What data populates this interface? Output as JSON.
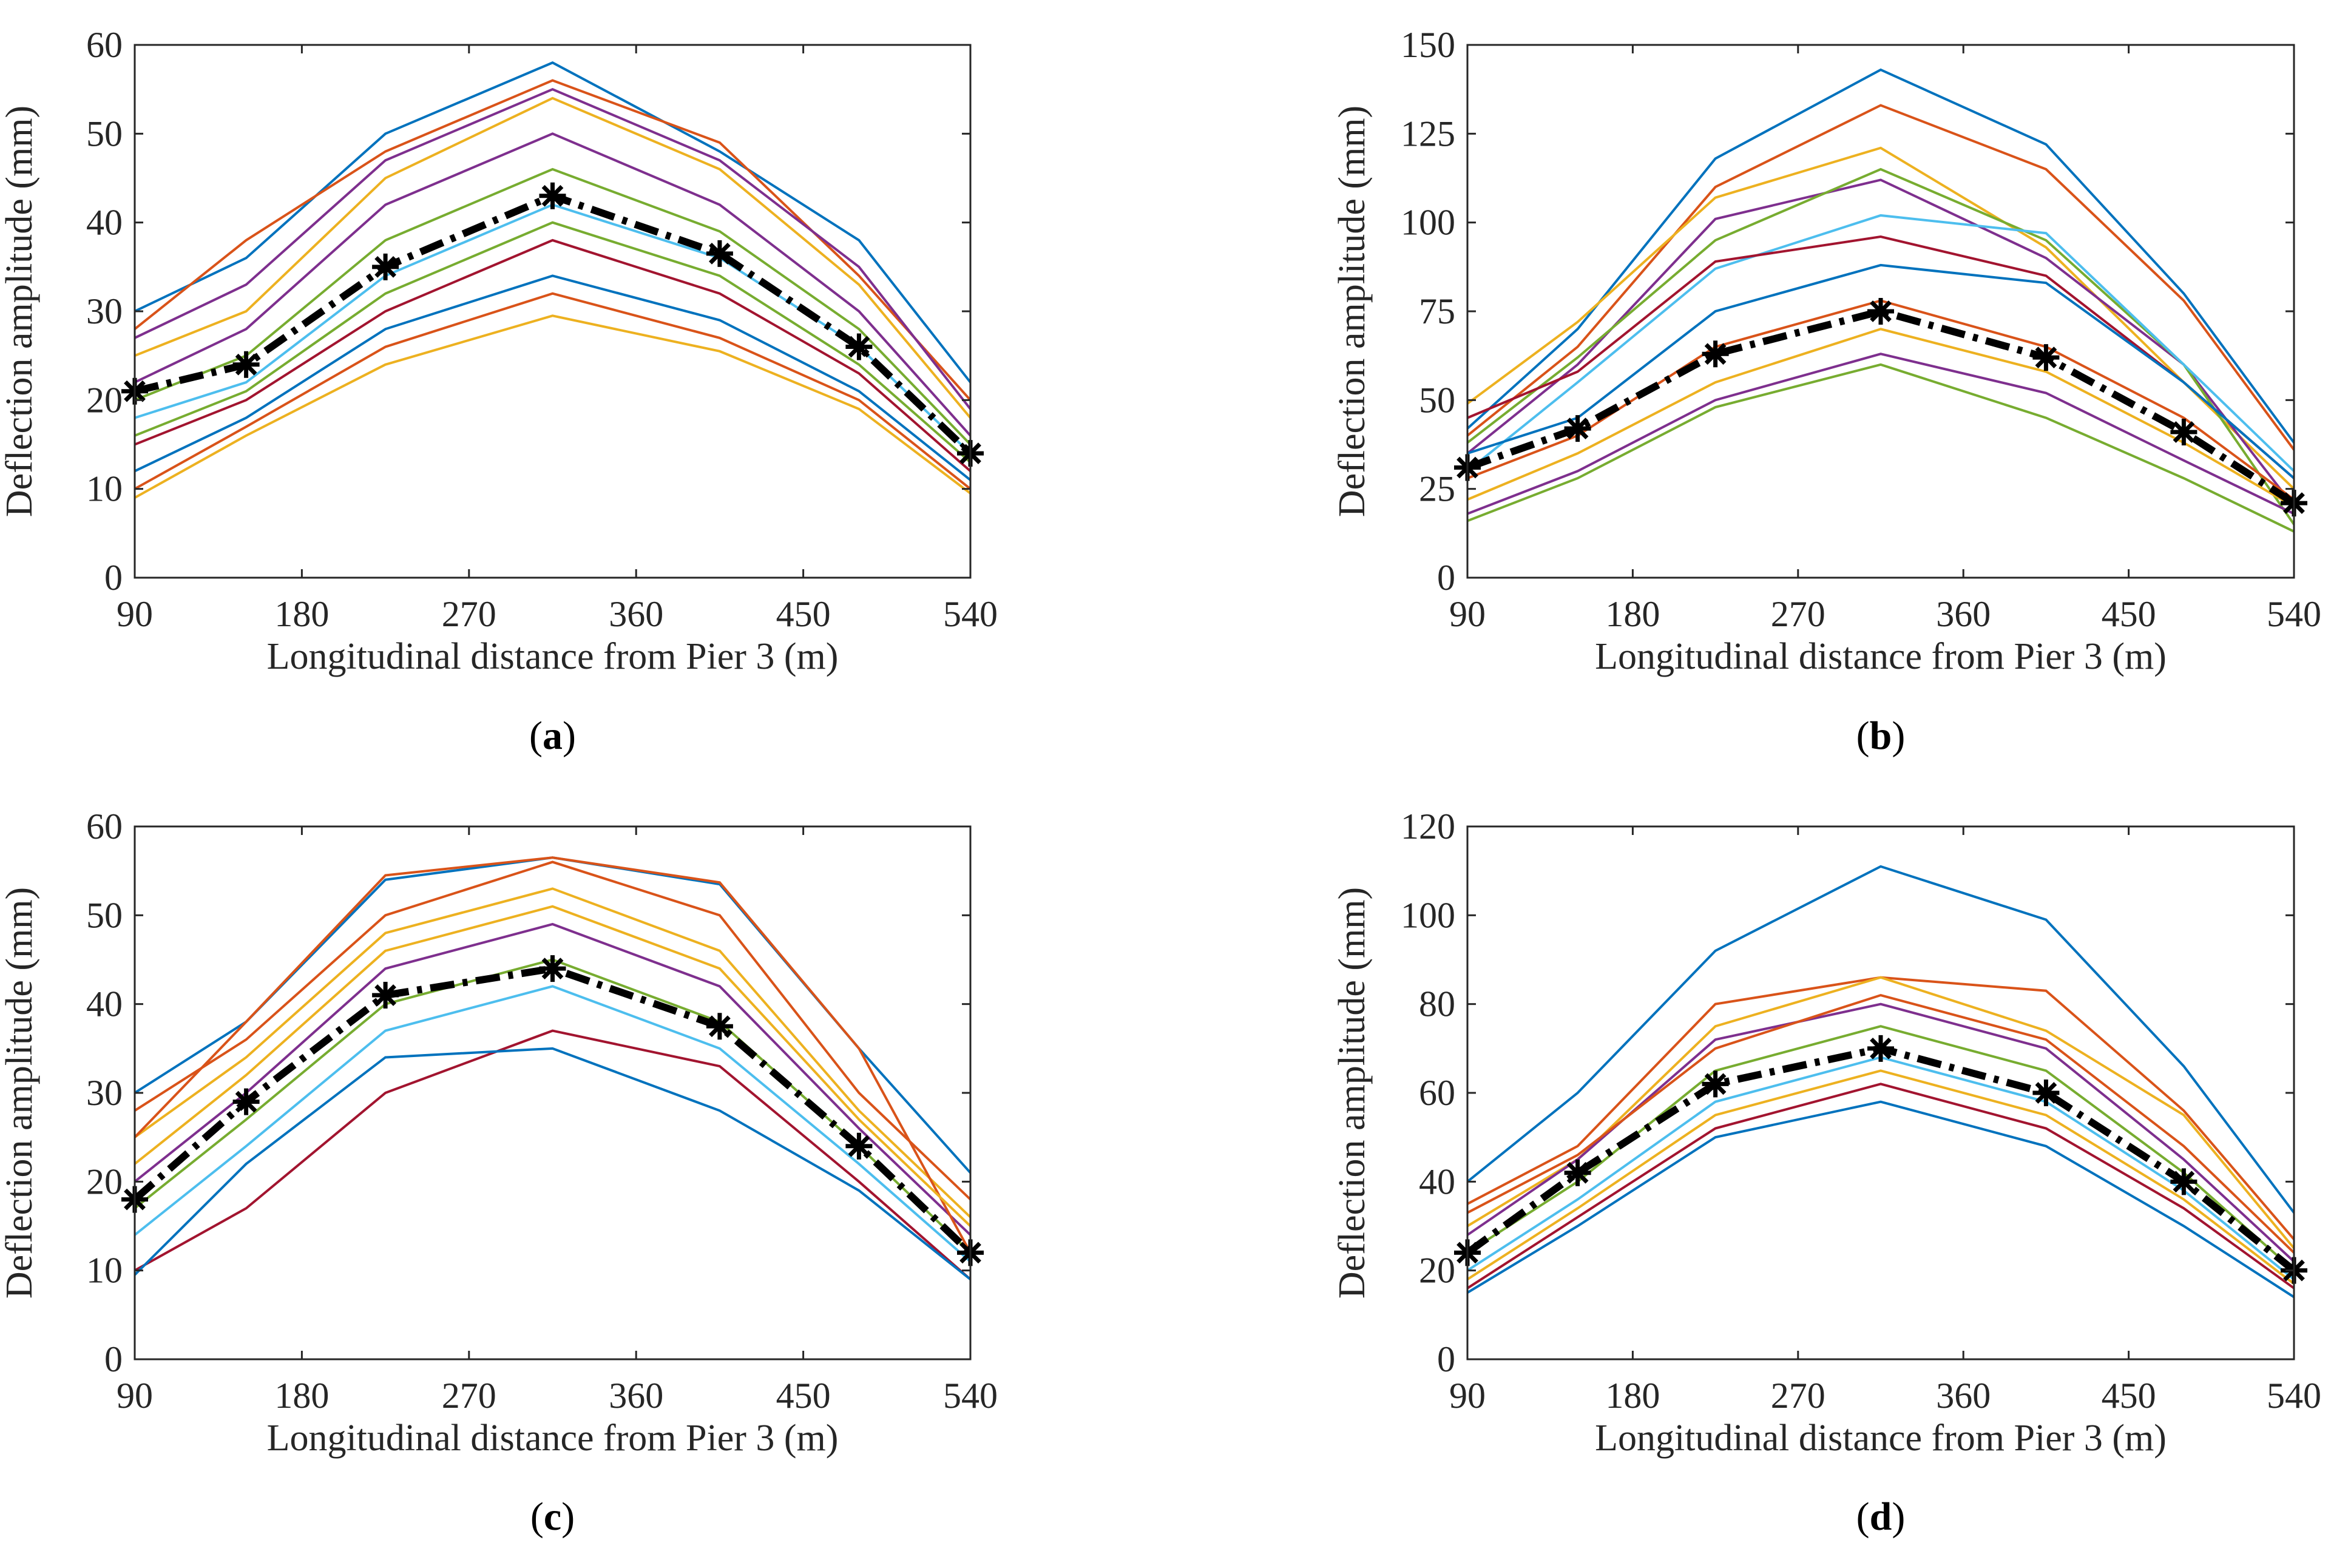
{
  "palette": [
    "#0072BD",
    "#D95319",
    "#EDB120",
    "#7E2F8E",
    "#77AC30",
    "#4DBEEE",
    "#A2142F"
  ],
  "mean_color": "#000000",
  "chart_data": [
    {
      "id": "a",
      "type": "line",
      "caption_paren_open": "(",
      "caption_letter": "a",
      "caption_paren_close": ")",
      "xlabel": "Longitudinal distance from Pier 3 (m)",
      "ylabel": "Deflection amplitude (mm)",
      "xlim": [
        90,
        540
      ],
      "ylim": [
        0,
        60
      ],
      "xticks": [
        90,
        180,
        270,
        360,
        450,
        540
      ],
      "yticks": [
        0,
        10,
        20,
        30,
        40,
        50,
        60
      ],
      "x": [
        90,
        150,
        225,
        315,
        405,
        480,
        540
      ],
      "series": [
        [
          30,
          36,
          50,
          58,
          48,
          38,
          22
        ],
        [
          28,
          38,
          48,
          56,
          49,
          34,
          20
        ],
        [
          25,
          30,
          45,
          54,
          46,
          33,
          18
        ],
        [
          22,
          28,
          42,
          50,
          42,
          30,
          16
        ],
        [
          20,
          25,
          38,
          46,
          39,
          28,
          15
        ],
        [
          18,
          22,
          34,
          42,
          36,
          26,
          14
        ],
        [
          15,
          20,
          30,
          38,
          32,
          23,
          12
        ],
        [
          12,
          18,
          28,
          34,
          29,
          21,
          11
        ],
        [
          10,
          17,
          26,
          32,
          27,
          20,
          10
        ],
        [
          9,
          16,
          24,
          29.5,
          25.5,
          19,
          9.5
        ],
        [
          27,
          33,
          47,
          55,
          47,
          35,
          19
        ],
        [
          16,
          21,
          32,
          40,
          34,
          24,
          13
        ]
      ],
      "mean": [
        21,
        24,
        35,
        43,
        36.5,
        26,
        14
      ]
    },
    {
      "id": "b",
      "type": "line",
      "caption_paren_open": "(",
      "caption_letter": "b",
      "caption_paren_close": ")",
      "xlabel": "Longitudinal distance from Pier 3 (m)",
      "ylabel": "Deflection amplitude (mm)",
      "xlim": [
        90,
        540
      ],
      "ylim": [
        0,
        150
      ],
      "xticks": [
        90,
        180,
        270,
        360,
        450,
        540
      ],
      "yticks": [
        0,
        25,
        50,
        75,
        100,
        125,
        150
      ],
      "x": [
        90,
        150,
        225,
        315,
        405,
        480,
        540
      ],
      "series": [
        [
          42,
          70,
          118,
          143,
          122,
          80,
          38
        ],
        [
          40,
          65,
          110,
          133,
          115,
          78,
          36
        ],
        [
          49,
          72,
          107,
          121,
          93,
          55,
          25
        ],
        [
          35,
          60,
          101,
          112,
          90,
          60,
          20
        ],
        [
          38,
          62,
          95,
          115,
          95,
          60,
          15
        ],
        [
          30,
          55,
          87,
          102,
          97,
          60,
          30
        ],
        [
          45,
          58,
          89,
          96,
          85,
          55,
          28
        ],
        [
          35,
          45,
          75,
          88,
          83,
          55,
          28
        ],
        [
          28,
          40,
          65,
          78,
          65,
          45,
          22
        ],
        [
          22,
          35,
          55,
          70,
          58,
          38,
          20
        ],
        [
          18,
          30,
          50,
          63,
          52,
          33,
          18
        ],
        [
          16,
          28,
          48,
          60,
          45,
          28,
          13
        ]
      ],
      "mean": [
        31,
        42,
        63,
        75,
        62,
        41,
        21
      ]
    },
    {
      "id": "c",
      "type": "line",
      "caption_paren_open": "(",
      "caption_letter": "c",
      "caption_paren_close": ")",
      "xlabel": "Longitudinal distance from Pier 3 (m)",
      "ylabel": "Deflection amplitude (mm)",
      "xlim": [
        90,
        540
      ],
      "ylim": [
        0,
        60
      ],
      "xticks": [
        90,
        180,
        270,
        360,
        450,
        540
      ],
      "yticks": [
        0,
        10,
        20,
        30,
        40,
        50,
        60
      ],
      "x": [
        90,
        150,
        225,
        315,
        405,
        480,
        540
      ],
      "series": [
        [
          30,
          38,
          54,
          56.5,
          53.5,
          35,
          21
        ],
        [
          28,
          36,
          50,
          56,
          50,
          30,
          18
        ],
        [
          25,
          34,
          48,
          53,
          46,
          28,
          16
        ],
        [
          20,
          30,
          44,
          49,
          42,
          26,
          14
        ],
        [
          17,
          27,
          40,
          45,
          38,
          24,
          12
        ],
        [
          14,
          24,
          37,
          42,
          35,
          22,
          11
        ],
        [
          10,
          17,
          30,
          37,
          33,
          20,
          9
        ],
        [
          9.5,
          22,
          34,
          35,
          28,
          19,
          9
        ],
        [
          25,
          38,
          54.5,
          56.5,
          53.7,
          35,
          12
        ],
        [
          22,
          32,
          46,
          51,
          44,
          27,
          15
        ]
      ],
      "mean": [
        18,
        29,
        41,
        44,
        37.5,
        24,
        12
      ]
    },
    {
      "id": "d",
      "type": "line",
      "caption_paren_open": "(",
      "caption_letter": "d",
      "caption_paren_close": ")",
      "xlabel": "Longitudinal distance from Pier 3 (m)",
      "ylabel": "Deflection amplitude (mm)",
      "xlim": [
        90,
        540
      ],
      "ylim": [
        0,
        120
      ],
      "xticks": [
        90,
        180,
        270,
        360,
        450,
        540
      ],
      "yticks": [
        0,
        20,
        40,
        60,
        80,
        100,
        120
      ],
      "x": [
        90,
        150,
        225,
        315,
        405,
        480,
        540
      ],
      "series": [
        [
          40,
          60,
          92,
          111,
          99,
          66,
          33
        ],
        [
          35,
          48,
          80,
          86,
          83,
          56,
          27
        ],
        [
          30,
          45,
          75,
          86,
          74,
          55,
          25
        ],
        [
          28,
          45,
          72,
          80,
          70,
          45,
          22
        ],
        [
          24,
          40,
          65,
          75,
          65,
          42,
          20
        ],
        [
          20,
          36,
          58,
          68,
          58,
          38,
          18
        ],
        [
          16,
          32,
          52,
          62,
          52,
          34,
          16
        ],
        [
          15,
          30,
          50,
          58,
          48,
          30,
          14
        ],
        [
          33,
          46,
          70,
          82,
          72,
          48,
          24
        ],
        [
          18,
          34,
          55,
          65,
          55,
          36,
          17
        ]
      ],
      "mean": [
        24,
        42,
        62,
        70,
        60,
        40,
        20
      ]
    }
  ]
}
